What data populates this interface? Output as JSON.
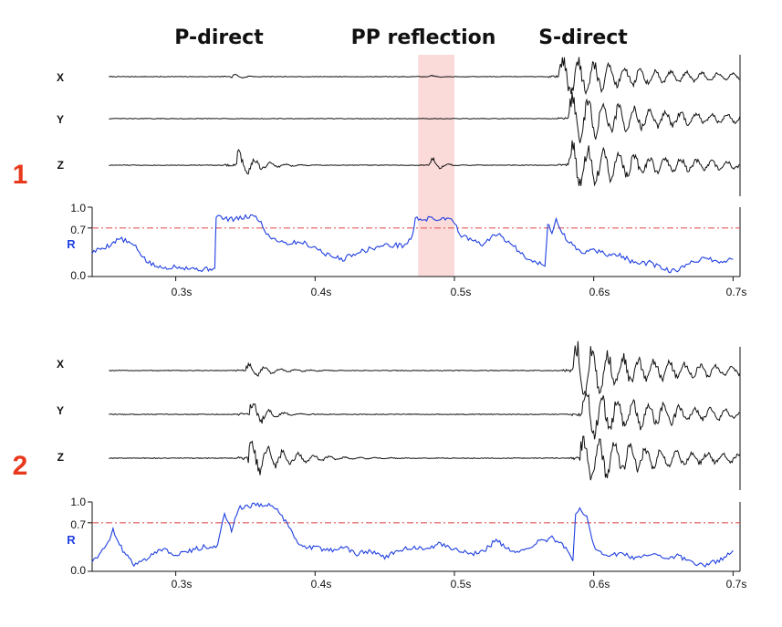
{
  "headers": [
    "P-direct",
    "PP reflection",
    "S-direct"
  ],
  "colors": {
    "panel_number": "#e8391d",
    "r_curve": "#1f3fe0",
    "threshold_line": "#e25a5a",
    "highlight": "#fbdada",
    "trace": "#111111",
    "axis": "#111111"
  },
  "chart_data": [
    {
      "type": "line",
      "panel": "1",
      "components": [
        "X",
        "Y",
        "Z"
      ],
      "highlight_window": [
        0.474,
        0.5
      ],
      "waveform_events": {
        "X": [
          {
            "t": 0.34,
            "amp": 0.25,
            "dur": 0.02
          },
          {
            "t": 0.482,
            "amp": 0.12,
            "dur": 0.015
          },
          {
            "t": 0.575,
            "amp": 1.0,
            "dur": 0.13
          }
        ],
        "Y": [
          {
            "t": 0.582,
            "amp": 1.15,
            "dur": 0.13
          }
        ],
        "Z": [
          {
            "t": 0.343,
            "amp": 1.0,
            "dur": 0.04
          },
          {
            "t": 0.482,
            "amp": 0.55,
            "dur": 0.02
          },
          {
            "t": 0.582,
            "amp": 1.1,
            "dur": 0.13
          }
        ]
      },
      "r_series": {
        "x": [
          0.24,
          0.252,
          0.26,
          0.27,
          0.28,
          0.29,
          0.3,
          0.31,
          0.32,
          0.328,
          0.329,
          0.335,
          0.345,
          0.355,
          0.36,
          0.365,
          0.37,
          0.38,
          0.39,
          0.4,
          0.41,
          0.42,
          0.43,
          0.44,
          0.45,
          0.465,
          0.47,
          0.472,
          0.48,
          0.49,
          0.498,
          0.505,
          0.51,
          0.52,
          0.53,
          0.54,
          0.55,
          0.56,
          0.565,
          0.567,
          0.57,
          0.573,
          0.58,
          0.59,
          0.6,
          0.61,
          0.62,
          0.63,
          0.64,
          0.65,
          0.66,
          0.67,
          0.68,
          0.69,
          0.7
        ],
        "y": [
          0.35,
          0.45,
          0.55,
          0.45,
          0.2,
          0.12,
          0.15,
          0.12,
          0.1,
          0.12,
          0.88,
          0.83,
          0.83,
          0.88,
          0.82,
          0.62,
          0.55,
          0.48,
          0.5,
          0.42,
          0.3,
          0.25,
          0.35,
          0.4,
          0.45,
          0.45,
          0.6,
          0.83,
          0.83,
          0.83,
          0.85,
          0.58,
          0.55,
          0.45,
          0.62,
          0.48,
          0.3,
          0.2,
          0.15,
          0.75,
          0.65,
          0.8,
          0.55,
          0.35,
          0.38,
          0.32,
          0.3,
          0.18,
          0.2,
          0.1,
          0.08,
          0.2,
          0.28,
          0.2,
          0.25
        ]
      },
      "y_ticks": [
        "0.0",
        "0.7",
        "1.0"
      ],
      "ylabel": "R",
      "threshold": 0.7,
      "ylim": [
        0.0,
        1.0
      ],
      "x_ticks": [
        "0.3s",
        "0.4s",
        "0.5s",
        "0.6s",
        "0.7s"
      ],
      "xlim": [
        0.24,
        0.705
      ]
    },
    {
      "type": "line",
      "panel": "2",
      "components": [
        "X",
        "Y",
        "Z"
      ],
      "waveform_events": {
        "X": [
          {
            "t": 0.35,
            "amp": 0.45,
            "dur": 0.05
          },
          {
            "t": 0.585,
            "amp": 1.15,
            "dur": 0.12
          }
        ],
        "Y": [
          {
            "t": 0.353,
            "amp": 1.0,
            "dur": 0.03
          },
          {
            "t": 0.592,
            "amp": 1.1,
            "dur": 0.12
          }
        ],
        "Z": [
          {
            "t": 0.352,
            "amp": 1.1,
            "dur": 0.07
          },
          {
            "t": 0.59,
            "amp": 1.0,
            "dur": 0.12
          }
        ]
      },
      "r_series": {
        "x": [
          0.24,
          0.25,
          0.255,
          0.262,
          0.27,
          0.28,
          0.29,
          0.3,
          0.31,
          0.32,
          0.33,
          0.335,
          0.34,
          0.345,
          0.35,
          0.36,
          0.368,
          0.38,
          0.39,
          0.4,
          0.41,
          0.42,
          0.43,
          0.44,
          0.45,
          0.46,
          0.47,
          0.48,
          0.49,
          0.5,
          0.51,
          0.52,
          0.53,
          0.54,
          0.55,
          0.56,
          0.57,
          0.58,
          0.585,
          0.587,
          0.59,
          0.595,
          0.6,
          0.61,
          0.62,
          0.63,
          0.64,
          0.65,
          0.66,
          0.67,
          0.68,
          0.69,
          0.7
        ],
        "y": [
          0.15,
          0.35,
          0.6,
          0.3,
          0.1,
          0.2,
          0.32,
          0.25,
          0.3,
          0.35,
          0.38,
          0.85,
          0.6,
          0.9,
          0.95,
          0.95,
          0.98,
          0.7,
          0.35,
          0.35,
          0.3,
          0.35,
          0.25,
          0.3,
          0.2,
          0.3,
          0.35,
          0.3,
          0.4,
          0.32,
          0.25,
          0.28,
          0.45,
          0.3,
          0.28,
          0.42,
          0.48,
          0.35,
          0.15,
          0.82,
          0.9,
          0.8,
          0.35,
          0.2,
          0.28,
          0.18,
          0.25,
          0.2,
          0.22,
          0.12,
          0.1,
          0.15,
          0.3
        ]
      },
      "y_ticks": [
        "0.0",
        "0.7",
        "1.0"
      ],
      "ylabel": "R",
      "threshold": 0.7,
      "ylim": [
        0.0,
        1.0
      ],
      "x_ticks": [
        "0.3s",
        "0.4s",
        "0.5s",
        "0.6s",
        "0.7s"
      ],
      "xlim": [
        0.24,
        0.705
      ]
    }
  ]
}
